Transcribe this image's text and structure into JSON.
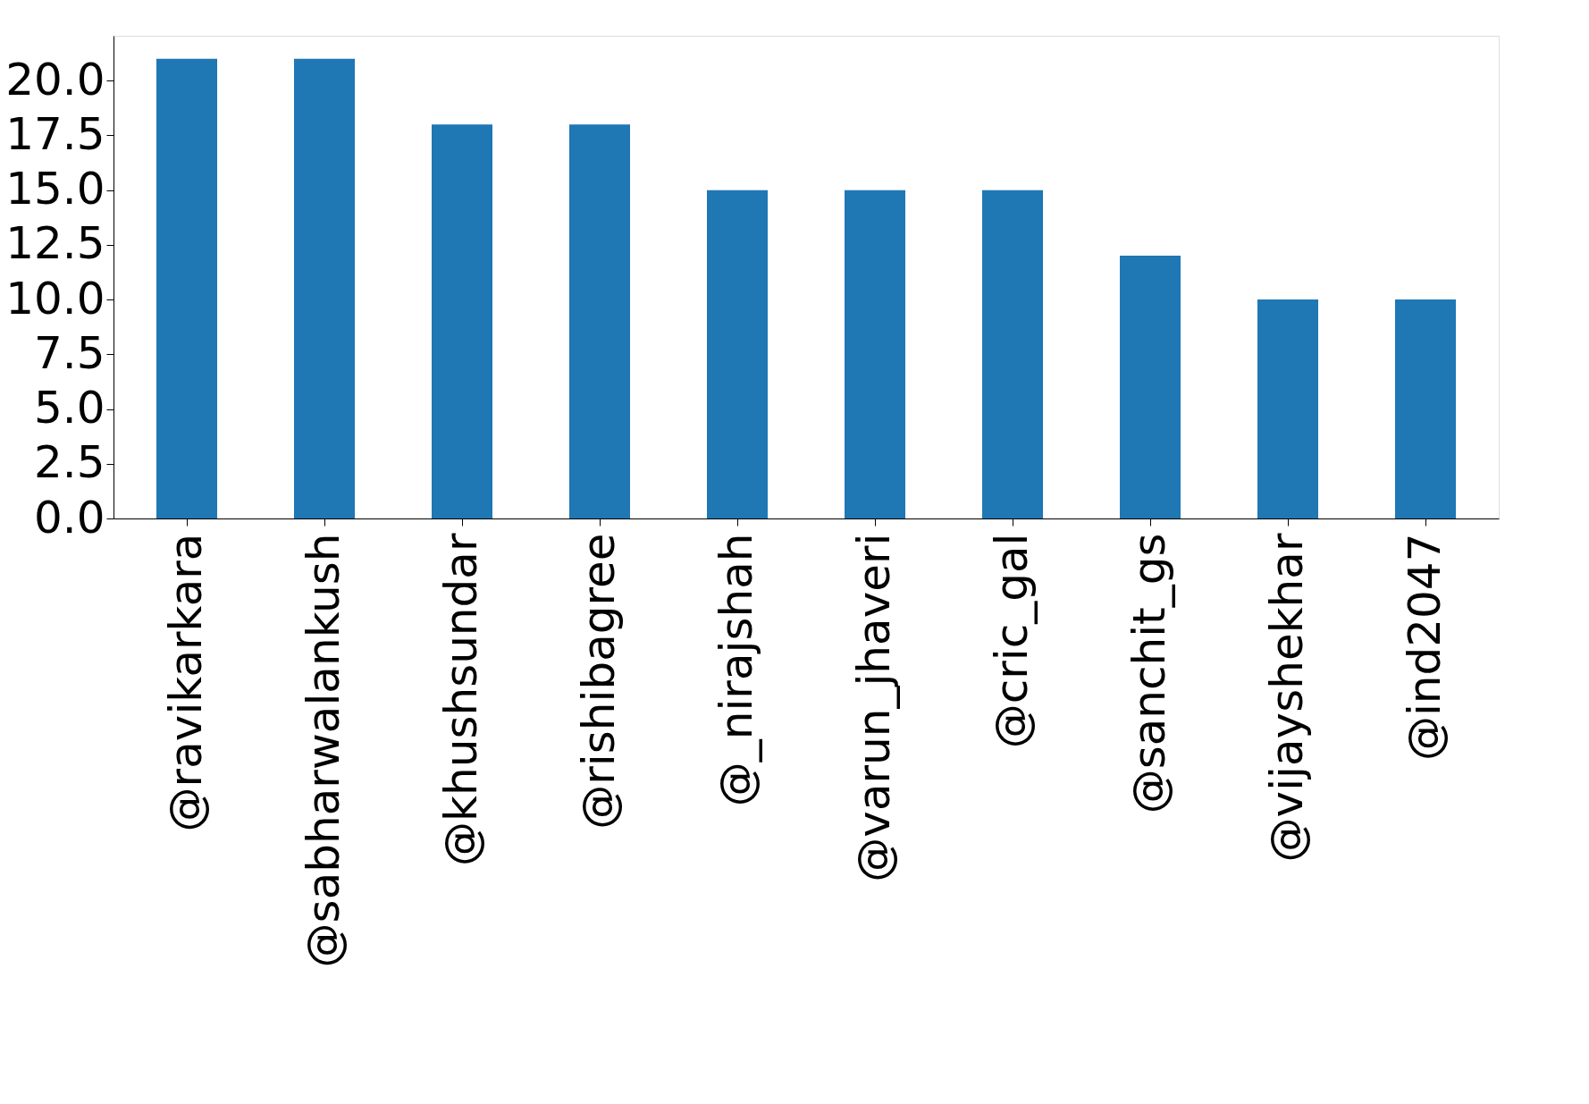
{
  "chart_data": {
    "type": "bar",
    "categories": [
      "@ravikarkara",
      "@sabharwalankush",
      "@khushsundar",
      "@rishibagree",
      "@_nirajshah",
      "@varun_jhaveri",
      "@cric_gal",
      "@sanchit_gs",
      "@vijayshekhar",
      "@ind2047"
    ],
    "values": [
      21,
      21,
      18,
      18,
      15,
      15,
      15,
      12,
      10,
      10
    ],
    "color": "#1f77b4",
    "ylim": [
      0,
      22.05
    ],
    "yticks": [
      {
        "value": 0,
        "label": "0.0"
      },
      {
        "value": 2.5,
        "label": "2.5"
      },
      {
        "value": 5,
        "label": "5.0"
      },
      {
        "value": 7.5,
        "label": "7.5"
      },
      {
        "value": 10,
        "label": "10.0"
      },
      {
        "value": 12.5,
        "label": "12.5"
      },
      {
        "value": 15,
        "label": "15.0"
      },
      {
        "value": 17.5,
        "label": "17.5"
      },
      {
        "value": 20,
        "label": "20.0"
      }
    ],
    "grid": false
  }
}
